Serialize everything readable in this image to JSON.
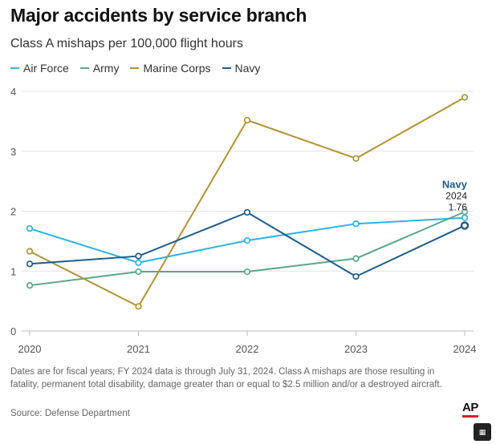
{
  "header": {
    "title": "Major accidents by service branch",
    "subtitle": "Class A mishaps per 100,000 flight hours"
  },
  "legend": [
    {
      "label": "Air Force",
      "color": "#2bb4e6"
    },
    {
      "label": "Army",
      "color": "#5aa58f"
    },
    {
      "label": "Marine Corps",
      "color": "#b5922f"
    },
    {
      "label": "Navy",
      "color": "#1f5d8d"
    }
  ],
  "chart_data": {
    "type": "line",
    "title": "Major accidents by service branch",
    "subtitle": "Class A mishaps per 100,000 flight hours",
    "x": [
      "2020",
      "2021",
      "2022",
      "2023",
      "2024"
    ],
    "ylim": [
      0,
      4
    ],
    "yticks": [
      "0",
      "1",
      "2",
      "3",
      "4"
    ],
    "grid": true,
    "series": [
      {
        "name": "Air Force",
        "color": "#2bb4e6",
        "values": [
          1.71,
          1.14,
          1.51,
          1.79,
          1.89
        ]
      },
      {
        "name": "Army",
        "color": "#5aa58f",
        "values": [
          0.76,
          0.99,
          0.99,
          1.21,
          1.99
        ]
      },
      {
        "name": "Marine Corps",
        "color": "#b5922f",
        "values": [
          1.33,
          0.41,
          3.52,
          2.88,
          3.9
        ]
      },
      {
        "name": "Navy",
        "color": "#1f5d8d",
        "values": [
          1.12,
          1.25,
          1.98,
          0.91,
          1.76
        ]
      }
    ],
    "annotation": {
      "series": "Navy",
      "year": "2024",
      "value": "1.76"
    }
  },
  "footnote": "Dates are for fiscal years; FY 2024 data is through July 31, 2024. Class A mishaps are those resulting in fatality, permanent total disability, damage greater than or equal to $2.5 million and/or a destroyed aircraft.",
  "source": "Source: Defense Department",
  "logo": "AP"
}
